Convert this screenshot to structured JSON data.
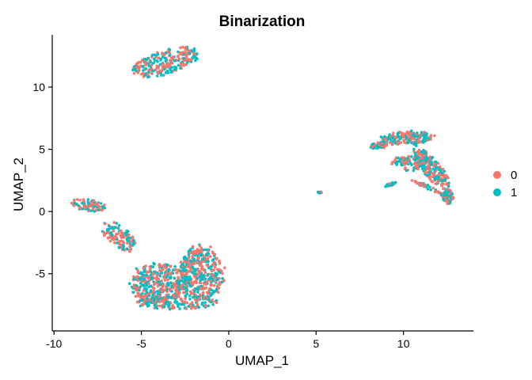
{
  "chart_data": {
    "type": "scatter",
    "title": "Binarization",
    "xlabel": "UMAP_1",
    "ylabel": "UMAP_2",
    "xlim": [
      -10.1,
      14.0
    ],
    "ylim": [
      -9.6,
      14.2
    ],
    "xticks": [
      -10,
      -5,
      0,
      5,
      10
    ],
    "yticks": [
      -5,
      0,
      5,
      10
    ],
    "xtick_labels": [
      "-10",
      "-5",
      "0",
      "5",
      "10"
    ],
    "ytick_labels": [
      "-5",
      "0",
      "5",
      "10"
    ],
    "grid": false,
    "legend_position": "right",
    "series": [
      {
        "name": "0",
        "color": "#F8766D"
      },
      {
        "name": "1",
        "color": "#00BFC4"
      }
    ],
    "clusters": [
      {
        "label": "top-cluster",
        "cx": -3.6,
        "cy": 12.0,
        "rx": 2.0,
        "ry": 0.9,
        "angle": 25,
        "n": 260
      },
      {
        "label": "left-arm",
        "cx": -8.0,
        "cy": 0.5,
        "rx": 1.0,
        "ry": 0.45,
        "angle": -10,
        "n": 90
      },
      {
        "label": "bridge",
        "cx": -6.3,
        "cy": -2.0,
        "rx": 1.4,
        "ry": 0.7,
        "angle": -55,
        "n": 120
      },
      {
        "label": "main-body-left",
        "cx": -4.0,
        "cy": -5.8,
        "rx": 1.6,
        "ry": 1.6,
        "angle": 0,
        "n": 380
      },
      {
        "label": "main-body-right",
        "cx": -1.6,
        "cy": -5.0,
        "rx": 1.3,
        "ry": 2.1,
        "angle": 0,
        "n": 420
      },
      {
        "label": "main-body-bottom",
        "cx": -3.0,
        "cy": -7.3,
        "rx": 2.3,
        "ry": 0.55,
        "angle": 0,
        "n": 160
      },
      {
        "label": "small-cluster",
        "cx": 5.2,
        "cy": 1.5,
        "rx": 0.12,
        "ry": 0.1,
        "angle": 0,
        "n": 8
      },
      {
        "label": "right-top",
        "cx": 10.2,
        "cy": 5.9,
        "rx": 1.5,
        "ry": 0.55,
        "angle": 5,
        "n": 180
      },
      {
        "label": "right-left-tip",
        "cx": 8.6,
        "cy": 5.3,
        "rx": 0.6,
        "ry": 0.25,
        "angle": 10,
        "n": 40
      },
      {
        "label": "right-descend",
        "cx": 11.6,
        "cy": 3.5,
        "rx": 1.9,
        "ry": 0.55,
        "angle": -60,
        "n": 220
      },
      {
        "label": "right-center",
        "cx": 10.3,
        "cy": 3.9,
        "rx": 0.9,
        "ry": 0.6,
        "angle": 0,
        "n": 90
      },
      {
        "label": "right-bottom",
        "cx": 12.5,
        "cy": 1.2,
        "rx": 0.35,
        "ry": 0.6,
        "angle": 0,
        "n": 80
      },
      {
        "label": "right-small-arm",
        "cx": 9.3,
        "cy": 2.2,
        "rx": 0.4,
        "ry": 0.12,
        "angle": 25,
        "n": 20
      },
      {
        "label": "right-diagonal",
        "cx": 11.3,
        "cy": 2.0,
        "rx": 1.0,
        "ry": 0.15,
        "angle": -30,
        "n": 35
      }
    ]
  }
}
